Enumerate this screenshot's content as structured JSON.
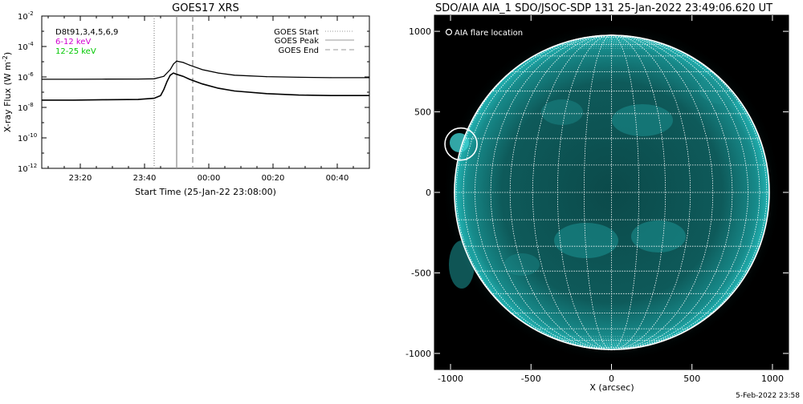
{
  "goes_panel": {
    "title": "GOES17 XRS",
    "ylabel_main": "X-ray Flux (W m",
    "ylabel_sup": "-2",
    "ylabel_tail": ")",
    "xlabel": "Start Time (25-Jan-22 23:08:00)",
    "ticks_y": [
      {
        "base": "10",
        "exp": "-2"
      },
      {
        "base": "10",
        "exp": "-4"
      },
      {
        "base": "10",
        "exp": "-6"
      },
      {
        "base": "10",
        "exp": "-8"
      },
      {
        "base": "10",
        "exp": "-10"
      },
      {
        "base": "10",
        "exp": "-12"
      }
    ],
    "ticks_x": [
      "23:20",
      "23:40",
      "00:00",
      "00:20",
      "00:40"
    ],
    "info_lines": [
      {
        "text": "D8t91,3,4,5,6,9",
        "color": "#000000"
      },
      {
        "text": "6-12 keV",
        "color": "#d100d1"
      },
      {
        "text": "12-25 keV",
        "color": "#00c800"
      }
    ],
    "legend": [
      {
        "label": "GOES Start",
        "style": "dotted",
        "color": "#9a9a9a"
      },
      {
        "label": "GOES Peak",
        "style": "solid",
        "color": "#9a9a9a"
      },
      {
        "label": "GOES End",
        "style": "dashed",
        "color": "#9a9a9a"
      }
    ]
  },
  "aia_panel": {
    "title": "SDO/AIA AIA_1 SDO/JSOC-SDP 131 25-Jan-2022 23:49:06.620 UT",
    "legend_label": "AIA flare location",
    "xlabel": "X (arcsec)",
    "ticks_x": [
      "-1000",
      "-500",
      "0",
      "500",
      "1000"
    ],
    "ticks_y": [
      "1000",
      "500",
      "0",
      "-500",
      "-1000"
    ],
    "footer_date": "5-Feb-2022 23:58"
  },
  "colors": {
    "sun_color": "#1aa3a3",
    "background": "#000000",
    "grid": "#ffffff",
    "curve": "#000000"
  },
  "chart_data": [
    {
      "type": "line",
      "title": "GOES17 XRS",
      "xlabel": "Start Time (25-Jan-22 23:08:00)",
      "ylabel": "X-ray Flux (W m^-2)",
      "yscale": "log",
      "ylim": [
        1e-12,
        0.01
      ],
      "xlim_minutes_after_start": [
        0,
        102
      ],
      "x_axis": "minutes after 25-Jan-22 23:08:00",
      "grid": false,
      "legend_position": "top-right",
      "series": [
        {
          "name": "6-12 keV",
          "x": [
            0,
            10,
            20,
            30,
            35,
            38,
            40,
            41,
            42,
            44,
            46,
            50,
            55,
            60,
            70,
            80,
            90,
            102
          ],
          "y": [
            7e-07,
            7e-07,
            7.2e-07,
            7.3e-07,
            7.6e-07,
            1.1e-06,
            3e-06,
            7e-06,
            1.1e-05,
            9e-06,
            6e-06,
            3e-06,
            1.8e-06,
            1.3e-06,
            1.05e-06,
            9.5e-07,
            9e-07,
            9e-07
          ]
        },
        {
          "name": "12-25 keV",
          "x": [
            0,
            10,
            20,
            30,
            35,
            37,
            38,
            39,
            40,
            41,
            42,
            44,
            46,
            50,
            55,
            60,
            70,
            80,
            90,
            102
          ],
          "y": [
            3e-08,
            3e-08,
            3.2e-08,
            3.3e-08,
            4e-08,
            6e-08,
            1.5e-07,
            5e-07,
            1.3e-06,
            1.8e-06,
            1.5e-06,
            1.1e-06,
            7e-07,
            3.5e-07,
            1.8e-07,
            1.2e-07,
            8e-08,
            6.5e-08,
            6e-08,
            6e-08
          ]
        }
      ],
      "event_lines": [
        {
          "name": "GOES Start",
          "x": 35
        },
        {
          "name": "GOES Peak",
          "x": 42
        },
        {
          "name": "GOES End",
          "x": 47
        }
      ]
    },
    {
      "type": "scatter",
      "title": "SDO/AIA AIA_1 SDO/JSOC-SDP 131 25-Jan-2022 23:49:06.620 UT",
      "xlabel": "X (arcsec)",
      "ylabel": "",
      "xlim": [
        -1100,
        1100
      ],
      "ylim": [
        -1100,
        1100
      ],
      "solar_radius_arcsec": 980,
      "grid": true,
      "series": [
        {
          "name": "AIA flare location",
          "x": [
            -935
          ],
          "y": [
            300
          ]
        }
      ]
    }
  ]
}
